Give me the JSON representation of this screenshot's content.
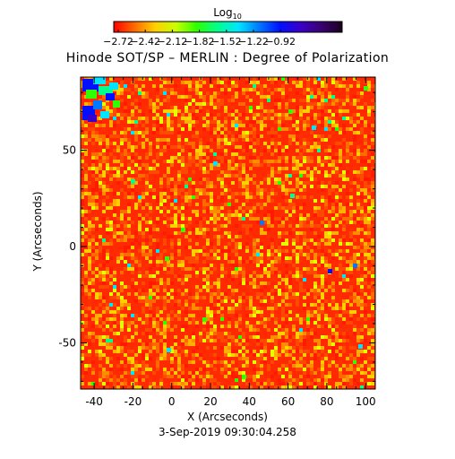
{
  "colorbar": {
    "label_main": "Log",
    "label_sub": "10",
    "ticks": [
      "−2.72",
      "−2.42",
      "−2.12",
      "−1.82",
      "−1.52",
      "−1.22",
      "−0.92"
    ],
    "colors": [
      "#ff0000",
      "#ff6a00",
      "#ffd000",
      "#c8ff00",
      "#2fff00",
      "#00ff8c",
      "#00e5ff",
      "#0078ff",
      "#0010ff",
      "#3a00c8",
      "#3a0070",
      "#1a001e"
    ]
  },
  "title": "Hinode SOT/SP – MERLIN : Degree of Polarization",
  "timestamp": "3-Sep-2019 09:30:04.258",
  "chart_data": {
    "type": "heatmap",
    "title": "Hinode SOT/SP – MERLIN : Degree of Polarization",
    "xlabel": "X (Arcseconds)",
    "ylabel": "Y (Arcseconds)",
    "x_ticks": [
      -40,
      -20,
      0,
      20,
      40,
      60,
      80,
      100
    ],
    "y_ticks": [
      -50,
      0,
      50
    ],
    "xlim": [
      -47,
      105
    ],
    "ylim": [
      -74,
      88
    ],
    "colorbar_range": [
      -2.72,
      -0.92
    ],
    "colorbar_label": "Log10",
    "colormap": "rainbow (red = low, dark purple/black = high)",
    "dominant_level": "red/orange (low degree of polarization) over the whole field",
    "high_polarization_patches": "blue/cyan concentrations at the top-left corner, scattered small green/cyan points elsewhere"
  }
}
